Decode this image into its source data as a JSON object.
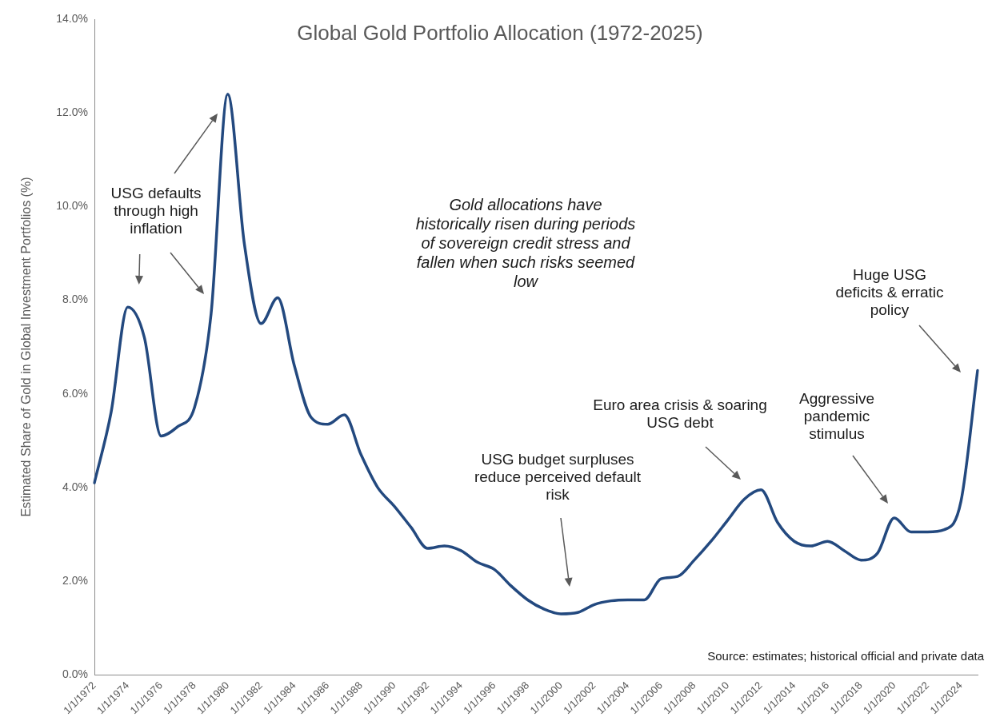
{
  "chart_data": {
    "type": "line",
    "title": "Global Gold Portfolio Allocation (1972-2025)",
    "ylabel": "Estimated Share of Gold in Global Investment Portfolios (%)",
    "categories": [
      "1/1/1972",
      null,
      "1/1/1974",
      null,
      "1/1/1976",
      null,
      "1/1/1978",
      null,
      "1/1/1980",
      null,
      "1/1/1982",
      null,
      "1/1/1984",
      null,
      "1/1/1986",
      null,
      "1/1/1988",
      null,
      "1/1/1990",
      null,
      "1/1/1992",
      null,
      "1/1/1994",
      null,
      "1/1/1996",
      null,
      "1/1/1998",
      null,
      "1/1/2000",
      null,
      "1/1/2002",
      null,
      "1/1/2004",
      null,
      "1/1/2006",
      null,
      "1/1/2008",
      null,
      "1/1/2010",
      null,
      "1/1/2012",
      null,
      "1/1/2014",
      null,
      "1/1/2016",
      null,
      "1/1/2018",
      null,
      "1/1/2020",
      null,
      "1/1/2022",
      null,
      "1/1/2024",
      null
    ],
    "series": [
      {
        "color": "#23497f",
        "values": [
          4.1,
          5.6,
          7.85,
          7.2,
          5.1,
          5.3,
          5.7,
          7.7,
          12.4,
          9.2,
          7.5,
          8.05,
          6.6,
          5.5,
          5.35,
          5.55,
          4.7,
          4.0,
          3.6,
          3.15,
          2.7,
          2.75,
          2.65,
          2.4,
          2.25,
          1.9,
          1.6,
          1.4,
          1.3,
          1.33,
          1.5,
          1.58,
          1.6,
          1.6,
          2.05,
          2.1,
          2.45,
          2.85,
          3.3,
          3.75,
          3.95,
          3.25,
          2.85,
          2.75,
          2.85,
          2.65,
          2.45,
          2.6,
          3.35,
          3.05,
          3.05,
          3.1,
          3.7,
          6.5
        ]
      }
    ],
    "ylim": [
      0,
      14
    ],
    "yticks": [
      {
        "value": 0,
        "label": "0.0%"
      },
      {
        "value": 2,
        "label": "2.0%"
      },
      {
        "value": 4,
        "label": "4.0%"
      },
      {
        "value": 6,
        "label": "6.0%"
      },
      {
        "value": 8,
        "label": "8.0%"
      },
      {
        "value": 10,
        "label": "10.0%"
      },
      {
        "value": 12,
        "label": "12.0%"
      },
      {
        "value": 14,
        "label": "14.0%"
      }
    ],
    "marker": "none",
    "annotations": [
      "USG defaults through high inflation",
      "Gold allocations have historically risen during periods of sovereign credit stress and fallen when such risks seemed low",
      "USG budget surpluses reduce perceived default risk",
      "Euro area crisis & soaring USG debt",
      "Aggressive pandemic stimulus",
      "Huge USG deficits & erratic policy",
      "Source: estimates; historical official and private data"
    ]
  }
}
